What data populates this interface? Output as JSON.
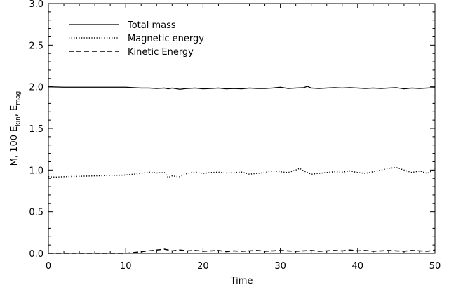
{
  "chart_data": {
    "type": "line",
    "xlabel": "Time",
    "ylabel": {
      "parts": [
        {
          "text": "M, 100 E",
          "sub": ""
        },
        {
          "text": "",
          "sub": "kin"
        },
        {
          "text": ", E",
          "sub": ""
        },
        {
          "text": "",
          "sub": "mag"
        }
      ]
    },
    "xlim": [
      0,
      50
    ],
    "ylim": [
      0,
      3
    ],
    "x_ticks": [
      0,
      10,
      20,
      30,
      40,
      50
    ],
    "x_tick_labels": [
      "0",
      "10",
      "20",
      "30",
      "40",
      "50"
    ],
    "y_ticks": [
      0,
      0.5,
      1,
      1.5,
      2,
      2.5,
      3
    ],
    "y_tick_labels": [
      "0.0",
      "0.5",
      "1.0",
      "1.5",
      "2.0",
      "2.5",
      "3.0"
    ],
    "grid": false,
    "legend": "top-left",
    "series": [
      {
        "name": "Total mass",
        "style": "solid",
        "x": [
          0,
          2,
          4,
          6,
          8,
          10,
          11,
          12,
          13,
          14,
          15,
          15.5,
          16,
          17,
          18,
          19,
          20,
          21,
          22,
          23,
          24,
          25,
          26,
          27,
          28,
          29,
          30,
          31,
          32,
          33,
          33.5,
          34,
          35,
          36,
          37,
          38,
          39,
          40,
          41,
          42,
          43,
          44,
          45,
          46,
          47,
          48,
          49,
          50
        ],
        "y": [
          2.0,
          1.995,
          1.995,
          1.995,
          1.995,
          1.995,
          1.99,
          1.985,
          1.985,
          1.98,
          1.985,
          1.975,
          1.985,
          1.97,
          1.98,
          1.985,
          1.975,
          1.98,
          1.985,
          1.975,
          1.98,
          1.975,
          1.985,
          1.98,
          1.98,
          1.985,
          1.995,
          1.98,
          1.985,
          1.99,
          2.005,
          1.985,
          1.98,
          1.985,
          1.99,
          1.985,
          1.99,
          1.985,
          1.98,
          1.985,
          1.98,
          1.985,
          1.99,
          1.975,
          1.985,
          1.98,
          1.985,
          1.99
        ]
      },
      {
        "name": "Magnetic energy",
        "style": "dotted",
        "x": [
          0,
          1,
          2,
          4,
          6,
          8,
          10,
          11,
          12,
          13,
          14,
          15,
          15.5,
          16,
          17,
          18,
          19,
          20,
          21,
          22,
          23,
          24,
          25,
          26,
          27,
          28,
          29,
          30,
          31,
          32,
          32.5,
          33,
          34,
          35,
          36,
          37,
          38,
          39,
          40,
          41,
          42,
          43,
          44,
          45,
          46,
          47,
          48,
          49,
          50
        ],
        "y": [
          0.92,
          0.915,
          0.92,
          0.925,
          0.93,
          0.935,
          0.94,
          0.95,
          0.96,
          0.975,
          0.965,
          0.97,
          0.91,
          0.93,
          0.92,
          0.96,
          0.975,
          0.96,
          0.97,
          0.975,
          0.965,
          0.97,
          0.975,
          0.95,
          0.96,
          0.97,
          0.99,
          0.98,
          0.97,
          1.0,
          1.02,
          0.99,
          0.95,
          0.96,
          0.97,
          0.98,
          0.975,
          0.99,
          0.97,
          0.96,
          0.98,
          1.0,
          1.02,
          1.03,
          1.0,
          0.97,
          0.99,
          0.96,
          1.01
        ]
      },
      {
        "name": "Kinetic Energy",
        "style": "dashed",
        "x": [
          0,
          2,
          4,
          6,
          8,
          10,
          11,
          12,
          13,
          14,
          15,
          16,
          17,
          18,
          19,
          20,
          21,
          22,
          23,
          24,
          25,
          26,
          27,
          28,
          29,
          30,
          31,
          32,
          33,
          34,
          35,
          36,
          37,
          38,
          39,
          40,
          41,
          42,
          43,
          44,
          45,
          46,
          47,
          48,
          49,
          50
        ],
        "y": [
          0.0,
          0.0,
          0.0,
          0.0,
          0.0,
          0.0,
          0.01,
          0.02,
          0.03,
          0.04,
          0.05,
          0.03,
          0.04,
          0.03,
          0.035,
          0.025,
          0.03,
          0.035,
          0.02,
          0.03,
          0.025,
          0.03,
          0.035,
          0.025,
          0.03,
          0.035,
          0.03,
          0.025,
          0.03,
          0.035,
          0.025,
          0.03,
          0.035,
          0.03,
          0.04,
          0.03,
          0.035,
          0.025,
          0.03,
          0.035,
          0.03,
          0.025,
          0.035,
          0.03,
          0.025,
          0.04
        ]
      }
    ]
  }
}
